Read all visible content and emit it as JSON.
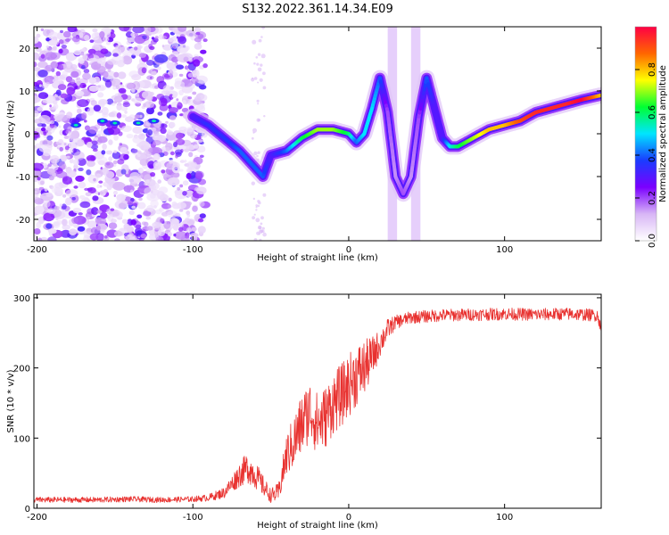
{
  "title": "S132.2022.361.14.34.E09",
  "chart_data": [
    {
      "type": "heatmap",
      "xlabel": "Height of straight line (km)",
      "ylabel": "Frequency (Hz)",
      "xlim": [
        -202,
        162
      ],
      "ylim": [
        -25,
        25
      ],
      "xticks": [
        -200,
        -100,
        0,
        100
      ],
      "yticks": [
        -20,
        -10,
        0,
        10,
        20
      ],
      "colorbar": {
        "label": "Normalized spectral amplitude",
        "range": [
          0,
          1
        ],
        "ticks": [
          0.0,
          0.2,
          0.4,
          0.6,
          0.8
        ],
        "colors": [
          "#ffffff",
          "#d8b6f6",
          "#7b00ff",
          "#1a3cff",
          "#00e5ff",
          "#00ff33",
          "#ffff00",
          "#ff6600",
          "#ff0044"
        ]
      },
      "ridge": {
        "x": [
          -100,
          -90,
          -80,
          -70,
          -60,
          -55,
          -50,
          -40,
          -30,
          -20,
          -10,
          0,
          5,
          10,
          15,
          20,
          25,
          30,
          35,
          40,
          45,
          50,
          55,
          60,
          65,
          70,
          80,
          90,
          100,
          110,
          120,
          130,
          140,
          150,
          162
        ],
        "y": [
          4,
          2,
          -1,
          -4,
          -8,
          -10,
          -5,
          -4,
          -1,
          1,
          1,
          0,
          -2,
          0,
          6,
          13,
          5,
          -10,
          -14,
          -10,
          4,
          13,
          6,
          -1,
          -3,
          -3,
          -1,
          1,
          2,
          3,
          5,
          6,
          7,
          8,
          9
        ]
      },
      "ridge_amplitude": [
        0.3,
        0.35,
        0.35,
        0.4,
        0.4,
        0.4,
        0.3,
        0.4,
        0.6,
        0.7,
        0.7,
        0.6,
        0.4,
        0.5,
        0.5,
        0.4,
        0.2,
        0.15,
        0.2,
        0.15,
        0.2,
        0.4,
        0.3,
        0.3,
        0.5,
        0.6,
        0.7,
        0.8,
        0.8,
        0.9,
        0.95,
        0.95,
        0.95,
        1.0,
        0.8
      ]
    },
    {
      "type": "line",
      "xlabel": "Height of straight line (km)",
      "ylabel": "SNR (10 * v/v)",
      "xlim": [
        -202,
        162
      ],
      "ylim": [
        0,
        305
      ],
      "xticks": [
        -200,
        -100,
        0,
        100
      ],
      "yticks": [
        0,
        100,
        200,
        300
      ],
      "color": "#e8312f",
      "series": [
        {
          "x": [
            -202,
            -180,
            -160,
            -140,
            -120,
            -100,
            -90,
            -80,
            -75,
            -70,
            -65,
            -60,
            -55,
            -50,
            -45,
            -40,
            -35,
            -30,
            -25,
            -20,
            -15,
            -10,
            -5,
            0,
            5,
            10,
            15,
            20,
            25,
            30,
            40,
            60,
            80,
            100,
            120,
            140,
            160,
            162
          ],
          "y": [
            12,
            12,
            12,
            13,
            12,
            13,
            15,
            22,
            35,
            48,
            58,
            48,
            32,
            18,
            22,
            75,
            95,
            120,
            140,
            120,
            130,
            150,
            160,
            175,
            190,
            200,
            215,
            235,
            255,
            265,
            272,
            275,
            276,
            277,
            276,
            277,
            275,
            250
          ],
          "noise": [
            4,
            4,
            4,
            4,
            4,
            4,
            5,
            8,
            12,
            18,
            22,
            20,
            15,
            10,
            14,
            30,
            40,
            45,
            45,
            45,
            45,
            45,
            45,
            45,
            45,
            40,
            30,
            20,
            15,
            10,
            9,
            9,
            9,
            9,
            9,
            9,
            9,
            10
          ]
        }
      ]
    }
  ]
}
